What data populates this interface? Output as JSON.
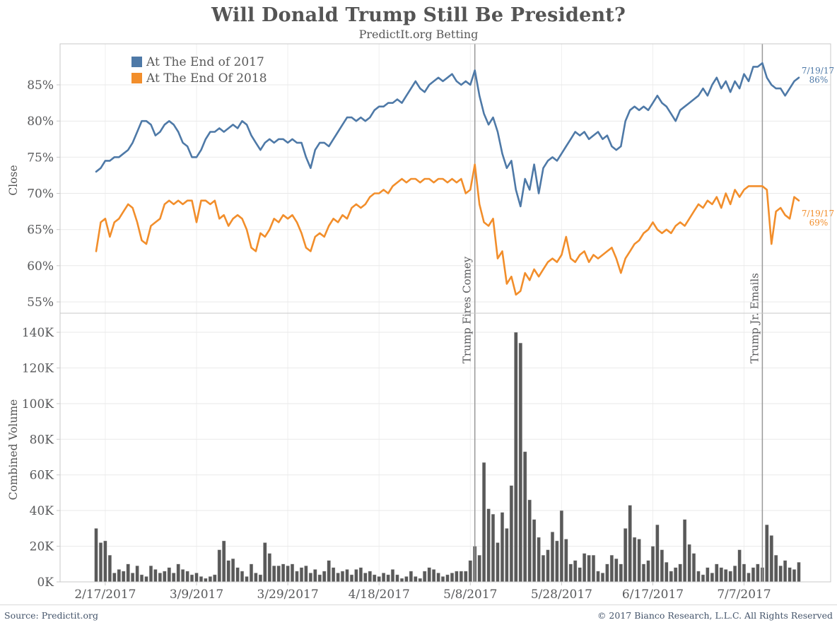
{
  "header": {
    "title": "Will Donald Trump Still Be President?",
    "subtitle": "PredictIt.org Betting"
  },
  "footer": {
    "source": "Source: Predictit.org",
    "copyright": "© 2017 Bianco Research, L.L.C. All Rights Reserved"
  },
  "chart_data": {
    "type": "line+bar",
    "x": {
      "n_points": 155,
      "tick_labels": [
        "2/17/2017",
        "3/9/2017",
        "3/29/2017",
        "4/18/2017",
        "5/8/2017",
        "5/28/2017",
        "6/17/2017",
        "7/7/2017"
      ],
      "tick_indices": [
        2,
        22,
        42,
        62,
        82,
        102,
        122,
        142
      ]
    },
    "panels": [
      {
        "type": "line",
        "ylabel": "Close",
        "ylim": [
          53.5,
          90.8
        ],
        "ytick_labels": [
          "85%",
          "80%",
          "75%",
          "70%",
          "65%",
          "60%",
          "55%"
        ],
        "ytick_values": [
          85,
          80,
          75,
          70,
          65,
          60,
          55
        ],
        "legend_position": "top-left",
        "series": [
          {
            "name": "At The End of 2017",
            "color": "#4e79a7",
            "values": [
              73,
              73.5,
              74.5,
              74.5,
              75,
              75,
              75.5,
              76,
              77,
              78.5,
              80,
              80,
              79.5,
              78,
              78.5,
              79.5,
              80,
              79.5,
              78.5,
              77,
              76.5,
              75,
              75,
              76,
              77.5,
              78.5,
              78.5,
              79,
              78.5,
              79,
              79.5,
              79,
              80,
              79.5,
              78,
              77,
              76,
              77,
              77.5,
              77,
              77.5,
              77.5,
              77,
              77.5,
              77,
              77,
              75,
              73.5,
              76,
              77,
              77,
              76.5,
              77.5,
              78.5,
              79.5,
              80.5,
              80.5,
              80,
              80.5,
              80,
              80.5,
              81.5,
              82,
              82,
              82.5,
              82.5,
              83,
              82.5,
              83.5,
              84.5,
              85.5,
              84.5,
              84,
              85,
              85.5,
              86,
              85.5,
              86,
              86.5,
              85.5,
              85,
              85.5,
              85,
              87,
              83.5,
              81,
              79.5,
              80.5,
              78.5,
              75.5,
              73.5,
              74.5,
              70.5,
              68.2,
              72,
              70.5,
              74,
              70,
              73.5,
              74.5,
              75,
              74.5,
              75.5,
              76.5,
              77.5,
              78.5,
              78,
              78.5,
              77.5,
              78,
              78.5,
              77.5,
              78,
              76.5,
              76,
              76.5,
              80,
              81.5,
              82,
              81.5,
              82,
              81.5,
              82.5,
              83.5,
              82.5,
              82,
              81,
              80,
              81.5,
              82,
              82.5,
              83,
              83.5,
              84.5,
              83.5,
              85,
              86,
              84.5,
              85.5,
              84,
              85.5,
              84.5,
              86.5,
              85.5,
              87.5,
              87.5,
              88,
              86,
              85,
              84.5,
              84.5,
              83.5,
              84.5,
              85.5,
              86
            ]
          },
          {
            "name": "At The End Of 2018",
            "color": "#f28e2b",
            "values": [
              62,
              66,
              66.5,
              64,
              66,
              66.5,
              67.5,
              68.5,
              68,
              66,
              63.5,
              63,
              65.5,
              66,
              66.5,
              68.5,
              69,
              68.5,
              69,
              68.5,
              69,
              69,
              66,
              69,
              69,
              68.5,
              69,
              66.5,
              67,
              65.5,
              66.5,
              67,
              66.5,
              65,
              62.5,
              62,
              64.5,
              64,
              65,
              66.5,
              66,
              67,
              66.5,
              67,
              66,
              64.5,
              62.5,
              62,
              64,
              64.5,
              64,
              65.5,
              66.5,
              66,
              67,
              66.5,
              68,
              68.5,
              68,
              68.5,
              69.5,
              70,
              70,
              70.5,
              70,
              71,
              71.5,
              72,
              71.5,
              72,
              72,
              71.5,
              72,
              72,
              71.5,
              72,
              72,
              71.5,
              72,
              71.5,
              72,
              70,
              70.5,
              74,
              68.5,
              66,
              65.5,
              66.5,
              61,
              62,
              57.5,
              58.5,
              56,
              56.5,
              59,
              58,
              59.5,
              58.5,
              59.5,
              60.5,
              61,
              60.5,
              61.5,
              64,
              61,
              60.5,
              61.5,
              62,
              60.5,
              61.5,
              61,
              61.5,
              62,
              62.5,
              61,
              59,
              61,
              62,
              63,
              63.5,
              64.5,
              65,
              66,
              65,
              64.5,
              65,
              64.5,
              65.5,
              66,
              65.5,
              66.5,
              67.5,
              68.5,
              68,
              69,
              68.5,
              69.5,
              68,
              70,
              68.5,
              70.5,
              69.5,
              70.5,
              71,
              71,
              71,
              71,
              70.5,
              63,
              67.5,
              68,
              67,
              66.5,
              69.5,
              69
            ]
          }
        ]
      },
      {
        "type": "bar",
        "ylabel": "Combined Volume",
        "unit": "K",
        "ylim": [
          0,
          150.8
        ],
        "ytick_labels": [
          "140K",
          "120K",
          "100K",
          "80K",
          "60K",
          "40K",
          "20K",
          "0K"
        ],
        "ytick_values": [
          140,
          120,
          100,
          80,
          60,
          40,
          20,
          0
        ],
        "series": [
          {
            "name": "Combined Volume",
            "color": "#595959",
            "values": [
              30,
              22,
              23,
              15,
              5,
              7,
              6,
              10,
              5,
              9,
              4,
              3,
              9,
              7,
              5,
              6,
              8,
              5,
              10,
              7,
              6,
              4,
              5,
              3,
              2,
              3,
              4,
              18,
              23,
              12,
              13,
              8,
              6,
              3,
              10,
              5,
              4,
              22,
              16,
              9,
              9,
              10,
              9,
              10,
              6,
              8,
              9,
              5,
              7,
              4,
              6,
              12,
              8,
              5,
              6,
              7,
              4,
              7,
              8,
              5,
              6,
              4,
              3,
              5,
              4,
              7,
              4,
              2,
              3,
              6,
              3,
              2,
              6,
              8,
              7,
              5,
              3,
              4,
              5,
              6,
              6,
              6,
              12,
              20,
              15,
              67,
              41,
              38,
              22,
              39,
              30,
              54,
              140,
              134,
              73,
              46,
              35,
              25,
              15,
              18,
              28,
              23,
              40,
              24,
              10,
              12,
              8,
              16,
              15,
              15,
              6,
              5,
              10,
              15,
              13,
              10,
              30,
              43,
              25,
              24,
              10,
              12,
              20,
              32,
              18,
              11,
              6,
              8,
              10,
              35,
              21,
              16,
              6,
              4,
              8,
              5,
              10,
              8,
              7,
              6,
              9,
              18,
              10,
              5,
              8,
              10,
              8,
              32,
              26,
              15,
              9,
              12,
              8,
              7,
              11
            ]
          }
        ]
      }
    ],
    "annotations": {
      "events": [
        {
          "label": "Trump Fires Comey",
          "index": 83
        },
        {
          "label": "Trump Jr. Emails",
          "index": 146
        }
      ],
      "end_labels": [
        {
          "date": "7/19/17",
          "value": "86%",
          "series": "At The End of 2017",
          "color": "#4e79a7"
        },
        {
          "date": "7/19/17",
          "value": "69%",
          "series": "At The End Of 2018",
          "color": "#f28e2b"
        }
      ]
    },
    "colors": {
      "accent_blue": "#4e79a7",
      "accent_orange": "#f28e2b",
      "bar_gray": "#595959",
      "grid": "#e9e9e9",
      "panel_border": "#c9c9c9",
      "event_line": "#999999"
    }
  }
}
